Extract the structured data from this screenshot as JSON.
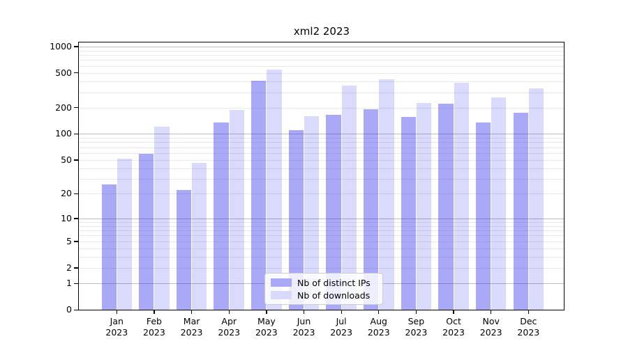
{
  "chart_data": {
    "type": "bar",
    "title": "xml2 2023",
    "categories": [
      {
        "line1": "Jan",
        "line2": "2023"
      },
      {
        "line1": "Feb",
        "line2": "2023"
      },
      {
        "line1": "Mar",
        "line2": "2023"
      },
      {
        "line1": "Apr",
        "line2": "2023"
      },
      {
        "line1": "May",
        "line2": "2023"
      },
      {
        "line1": "Jun",
        "line2": "2023"
      },
      {
        "line1": "Jul",
        "line2": "2023"
      },
      {
        "line1": "Aug",
        "line2": "2023"
      },
      {
        "line1": "Sep",
        "line2": "2023"
      },
      {
        "line1": "Oct",
        "line2": "2023"
      },
      {
        "line1": "Nov",
        "line2": "2023"
      },
      {
        "line1": "Dec",
        "line2": "2023"
      }
    ],
    "series": [
      {
        "name": "Nb of distinct IPs",
        "apparent_hex": "#A9A9F8",
        "fill_rgba": "rgba(34,34,238,0.39)",
        "values": [
          26,
          59,
          22,
          136,
          405,
          110,
          165,
          190,
          156,
          220,
          135,
          176
        ]
      },
      {
        "name": "Nb of downloads",
        "apparent_hex": "#D9D9FA",
        "fill_rgba": "rgba(34,34,238,0.17)",
        "values": [
          52,
          122,
          46,
          187,
          545,
          160,
          360,
          420,
          225,
          383,
          260,
          330
        ]
      }
    ],
    "y_axis": {
      "scale": "log10(value+1)",
      "ticks": [
        0,
        1,
        2,
        5,
        10,
        20,
        50,
        100,
        200,
        500,
        1000
      ],
      "major_gridlines": [
        1,
        10,
        100,
        1000
      ],
      "minor_gridlines_pattern": "2-9 per decade"
    },
    "legend_position": "lower center inside plot",
    "grid": "on",
    "colors": {
      "major_grid": "#bdbdbd",
      "minor_grid": "#e9e9e9",
      "axis": "#000000",
      "background": "#ffffff"
    }
  }
}
